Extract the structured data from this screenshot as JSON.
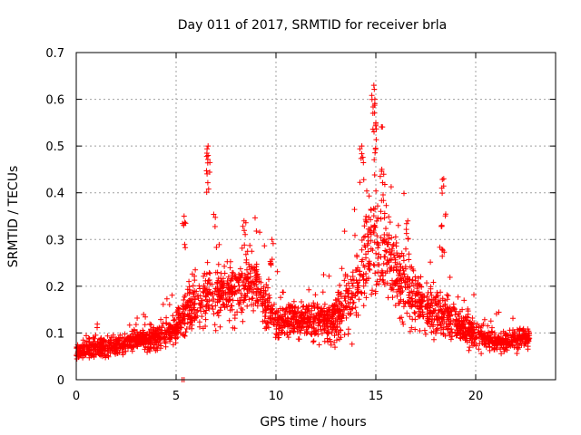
{
  "chart_data": {
    "type": "scatter",
    "title": "Day 011 of 2017, SRMTID for receiver brla",
    "xlabel": "GPS time / hours",
    "ylabel": "SRMTID / TECUs",
    "xlim": [
      0,
      24
    ],
    "ylim": [
      0,
      0.7
    ],
    "x_ticks": [
      0,
      5,
      10,
      15,
      20
    ],
    "x_tick_labels": [
      "0",
      "5",
      "10",
      "15",
      "20"
    ],
    "y_ticks": [
      0,
      0.1,
      0.2,
      0.3,
      0.4,
      0.5,
      0.6,
      0.7
    ],
    "y_tick_labels": [
      "0",
      "0.1",
      "0.2",
      "0.3",
      "0.4",
      "0.5",
      "0.6",
      "0.7"
    ],
    "grid": true,
    "marker": "+",
    "series": [
      {
        "name": "SRMTID",
        "color": "#ff0000",
        "profile_x": [
          0,
          1,
          2,
          3,
          4,
          5,
          5.5,
          6,
          7,
          8,
          9,
          10,
          11,
          12,
          13,
          14,
          14.5,
          15,
          15.5,
          16,
          17,
          18,
          19,
          20,
          21,
          22,
          22.7
        ],
        "profile_y": [
          0.06,
          0.07,
          0.07,
          0.085,
          0.09,
          0.11,
          0.15,
          0.17,
          0.18,
          0.19,
          0.21,
          0.12,
          0.13,
          0.12,
          0.13,
          0.2,
          0.26,
          0.3,
          0.27,
          0.22,
          0.17,
          0.15,
          0.12,
          0.1,
          0.08,
          0.085,
          0.09
        ],
        "spread_y": [
          0.015,
          0.02,
          0.02,
          0.02,
          0.025,
          0.03,
          0.05,
          0.06,
          0.06,
          0.06,
          0.06,
          0.035,
          0.035,
          0.035,
          0.05,
          0.08,
          0.1,
          0.12,
          0.1,
          0.08,
          0.06,
          0.05,
          0.04,
          0.03,
          0.02,
          0.02,
          0.02
        ],
        "peaks": [
          {
            "x": 6.6,
            "y": 0.5
          },
          {
            "x": 6.6,
            "y": 0.48
          },
          {
            "x": 5.4,
            "y": 0.35
          },
          {
            "x": 8.4,
            "y": 0.34
          },
          {
            "x": 9.8,
            "y": 0.3
          },
          {
            "x": 14.3,
            "y": 0.5
          },
          {
            "x": 14.9,
            "y": 0.63
          },
          {
            "x": 14.95,
            "y": 0.6
          },
          {
            "x": 15.0,
            "y": 0.55
          },
          {
            "x": 15.3,
            "y": 0.45
          },
          {
            "x": 18.4,
            "y": 0.43
          },
          {
            "x": 18.3,
            "y": 0.33
          },
          {
            "x": 16.6,
            "y": 0.34
          },
          {
            "x": 5.3,
            "y": 0.0
          },
          {
            "x": 5.4,
            "y": 0.0
          }
        ],
        "point_count": 2600
      }
    ]
  }
}
